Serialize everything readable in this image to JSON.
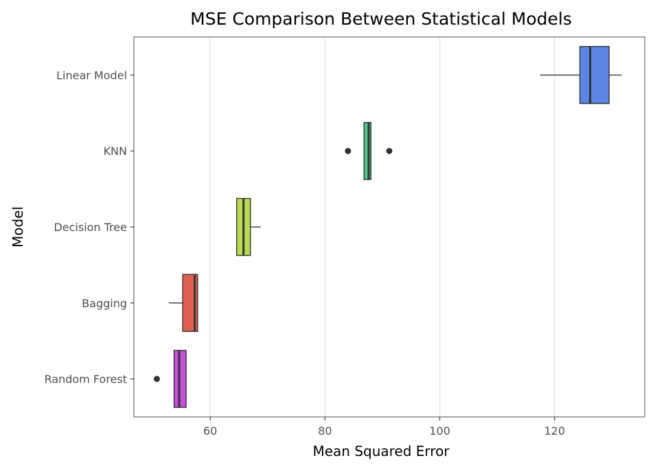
{
  "chart_data": {
    "type": "boxplot",
    "orientation": "horizontal",
    "title": "MSE Comparison Between Statistical Models",
    "xlabel": "Mean Squared Error",
    "ylabel": "Model",
    "xlim": [
      46.7,
      135.7
    ],
    "xticks": [
      60,
      80,
      100,
      120
    ],
    "grid": "vertical major lines",
    "legend": "none",
    "categories": [
      "Linear Model",
      "KNN",
      "Decision Tree",
      "Bagging",
      "Random Forest"
    ],
    "boxes": [
      {
        "name": "Linear Model",
        "whisker_low": 117.5,
        "q1": 124.4,
        "median": 126.2,
        "q3": 129.5,
        "whisker_high": 131.7,
        "outliers": [],
        "color": "#5b86e5"
      },
      {
        "name": "KNN",
        "whisker_low": 86.8,
        "q1": 86.8,
        "median": 87.6,
        "q3": 88.0,
        "whisker_high": 88.0,
        "outliers": [
          84.0,
          91.2
        ],
        "color": "#4ec986"
      },
      {
        "name": "Decision Tree",
        "whisker_low": 64.6,
        "q1": 64.6,
        "median": 65.8,
        "q3": 67.0,
        "whisker_high": 68.8,
        "outliers": [],
        "color": "#b8da4e"
      },
      {
        "name": "Bagging",
        "whisker_low": 52.8,
        "q1": 55.2,
        "median": 57.3,
        "q3": 57.8,
        "whisker_high": 57.8,
        "outliers": [],
        "color": "#e06151"
      },
      {
        "name": "Random Forest",
        "whisker_low": 53.7,
        "q1": 53.7,
        "median": 54.6,
        "q3": 55.8,
        "whisker_high": 55.8,
        "outliers": [
          50.7
        ],
        "color": "#c84ee0"
      }
    ]
  }
}
